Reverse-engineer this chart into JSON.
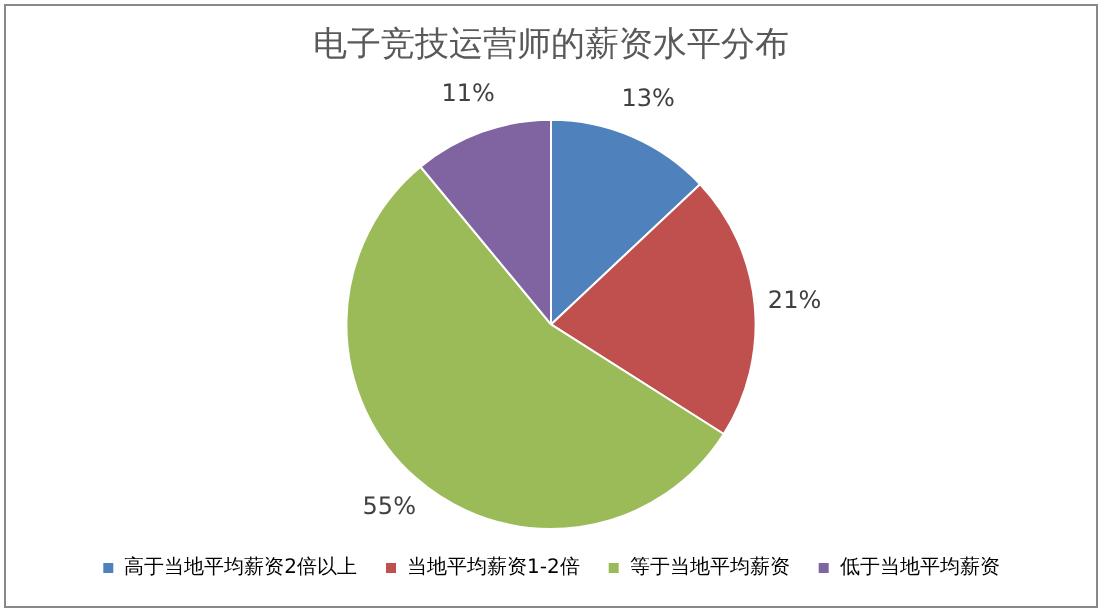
{
  "chart_data": {
    "type": "pie",
    "title": "电子竞技运营师的薪资水平分布",
    "categories": [
      "高于当地平均薪资2倍以上",
      "当地平均薪资1-2倍",
      "等于当地平均薪资",
      "低于当地平均薪资"
    ],
    "values": [
      13,
      21,
      55,
      11
    ],
    "colors": [
      "#4f81bd",
      "#c0504d",
      "#9bbb59",
      "#8064a2"
    ],
    "value_labels": [
      "13%",
      "21%",
      "55%",
      "11%"
    ],
    "legend": "bottom"
  }
}
